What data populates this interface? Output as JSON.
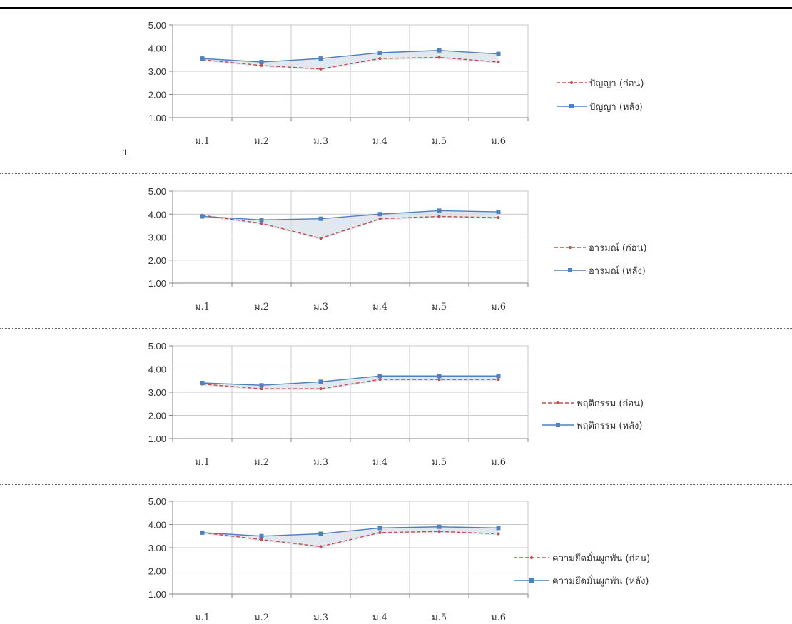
{
  "page_number": "1",
  "colors": {
    "before": "#c0504d",
    "after": "#4f81bd",
    "grid": "#c8c8c8",
    "axis": "#868686",
    "band": "#d6dee9"
  },
  "chart_data": [
    {
      "type": "line",
      "categories": [
        "ม.1",
        "ม.2",
        "ม.3",
        "ม.4",
        "ม.5",
        "ม.6"
      ],
      "ylim": [
        1,
        5
      ],
      "y_ticks": [
        "5.00",
        "4.00",
        "3.00",
        "2.00",
        "1.00"
      ],
      "grid": true,
      "legend_position": "right",
      "series": [
        {
          "name": "ปัญญา (ก่อน)",
          "style": "dashed",
          "values": [
            3.5,
            3.25,
            3.1,
            3.55,
            3.6,
            3.4
          ]
        },
        {
          "name": "ปัญญา (หลัง)",
          "style": "solid",
          "values": [
            3.55,
            3.4,
            3.55,
            3.8,
            3.9,
            3.75
          ]
        }
      ]
    },
    {
      "type": "line",
      "categories": [
        "ม.1",
        "ม.2",
        "ม.3",
        "ม.4",
        "ม.5",
        "ม.6"
      ],
      "ylim": [
        1,
        5
      ],
      "y_ticks": [
        "5.00",
        "4.00",
        "3.00",
        "2.00",
        "1.00"
      ],
      "grid": true,
      "legend_position": "right",
      "series": [
        {
          "name": "อารมณ์ (ก่อน)",
          "style": "dashed",
          "values": [
            3.95,
            3.6,
            2.95,
            3.8,
            3.9,
            3.85
          ]
        },
        {
          "name": "อารมณ์ (หลัง)",
          "style": "solid",
          "values": [
            3.9,
            3.75,
            3.8,
            4.0,
            4.15,
            4.1
          ]
        }
      ]
    },
    {
      "type": "line",
      "categories": [
        "ม.1",
        "ม.2",
        "ม.3",
        "ม.4",
        "ม.5",
        "ม.6"
      ],
      "ylim": [
        1,
        5
      ],
      "y_ticks": [
        "5.00",
        "4.00",
        "3.00",
        "2.00",
        "1.00"
      ],
      "grid": true,
      "legend_position": "right",
      "series": [
        {
          "name": "พฤติกรรม (ก่อน)",
          "style": "dashed",
          "values": [
            3.35,
            3.15,
            3.15,
            3.55,
            3.55,
            3.55
          ]
        },
        {
          "name": "พฤติกรรม (หลัง)",
          "style": "solid",
          "values": [
            3.4,
            3.3,
            3.45,
            3.7,
            3.7,
            3.7
          ]
        }
      ]
    },
    {
      "type": "line",
      "categories": [
        "ม.1",
        "ม.2",
        "ม.3",
        "ม.4",
        "ม.5",
        "ม.6"
      ],
      "ylim": [
        1,
        5
      ],
      "y_ticks": [
        "5.00",
        "4.00",
        "3.00",
        "2.00",
        "1.00"
      ],
      "grid": true,
      "legend_position": "right",
      "series": [
        {
          "name": "ความยึดมั่นผูกพัน (ก่อน)",
          "style": "dashed",
          "values": [
            3.65,
            3.35,
            3.05,
            3.65,
            3.7,
            3.6
          ]
        },
        {
          "name": "ความยึดมั่นผูกพัน (หลัง)",
          "style": "solid",
          "values": [
            3.65,
            3.5,
            3.6,
            3.85,
            3.9,
            3.85
          ]
        }
      ]
    }
  ]
}
